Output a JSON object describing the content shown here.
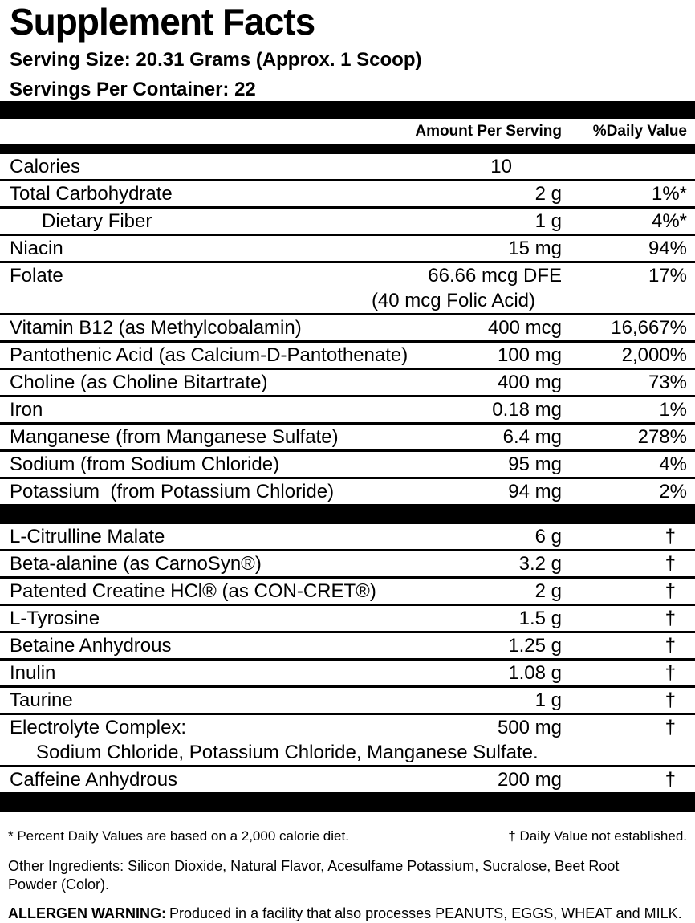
{
  "panel": {
    "title": "Supplement Facts",
    "serving_size": "Serving Size: 20.31 Grams (Approx. 1 Scoop)",
    "servings_per_container": "Servings Per Container: 22",
    "columns": {
      "amount": "Amount Per Serving",
      "daily_value": "%Daily Value"
    },
    "section1": {
      "rows": [
        {
          "name": "Calories",
          "amount": "10",
          "dv": ""
        },
        {
          "name": "Total Carbohydrate",
          "amount": "2 g",
          "dv": "1%*"
        },
        {
          "name": "Dietary Fiber",
          "amount": "1 g",
          "dv": "4%*"
        },
        {
          "name": "Niacin",
          "amount": "15 mg",
          "dv": "94%"
        },
        {
          "name": "Folate",
          "amount": "66.66 mcg DFE",
          "dv": "17%",
          "subline": "(40 mcg Folic Acid)"
        },
        {
          "name": "Vitamin B12 (as Methylcobalamin)",
          "amount": "400 mcg",
          "dv": "16,667%"
        },
        {
          "name": "Pantothenic Acid (as Calcium-D-Pantothenate)",
          "amount": "100 mg",
          "dv": "2,000%"
        },
        {
          "name": "Choline (as Choline Bitartrate)",
          "amount": "400 mg",
          "dv": "73%"
        },
        {
          "name": "Iron",
          "amount": "0.18 mg",
          "dv": "1%"
        },
        {
          "name": "Manganese (from Manganese Sulfate)",
          "amount": "6.4 mg",
          "dv": "278%"
        },
        {
          "name": "Sodium (from Sodium Chloride)",
          "amount": "95 mg",
          "dv": "4%"
        },
        {
          "name": "Potassium  (from Potassium Chloride)",
          "amount": "94 mg",
          "dv": "2%"
        }
      ]
    },
    "section2": {
      "rows": [
        {
          "name": "L-Citrulline Malate",
          "amount": "6 g",
          "dv": "†"
        },
        {
          "name": "Beta-alanine (as CarnoSyn®)",
          "amount": "3.2 g",
          "dv": "†"
        },
        {
          "name": "Patented Creatine HCl® (as CON-CRET®)",
          "amount": "2 g",
          "dv": "†"
        },
        {
          "name": "L-Tyrosine",
          "amount": "1.5 g",
          "dv": "†"
        },
        {
          "name": "Betaine Anhydrous",
          "amount": "1.25 g",
          "dv": "†"
        },
        {
          "name": "Inulin",
          "amount": "1.08 g",
          "dv": "†"
        },
        {
          "name": "Taurine",
          "amount": "1 g",
          "dv": "†"
        },
        {
          "name": "Electrolyte Complex:",
          "amount": "500 mg",
          "dv": "†",
          "subline": "Sodium Chloride, Potassium Chloride, Manganese Sulfate."
        },
        {
          "name": "Caffeine Anhydrous",
          "amount": "200 mg",
          "dv": "†"
        }
      ]
    },
    "footnotes": {
      "asterisk": "* Percent Daily Values are based on a 2,000 calorie diet.",
      "dagger": "† Daily Value not established."
    },
    "other_ingredients": "Other Ingredients: Silicon Dioxide, Natural Flavor, Acesulfame Potassium, Sucralose, Beet Root Powder (Color).",
    "allergen": {
      "label": "ALLERGEN WARNING:",
      "text": "Produced in a facility that also processes PEANUTS, EGGS, WHEAT and MILK."
    }
  },
  "colors": {
    "text": "#000000",
    "background": "#ffffff",
    "bar": "#000000"
  }
}
